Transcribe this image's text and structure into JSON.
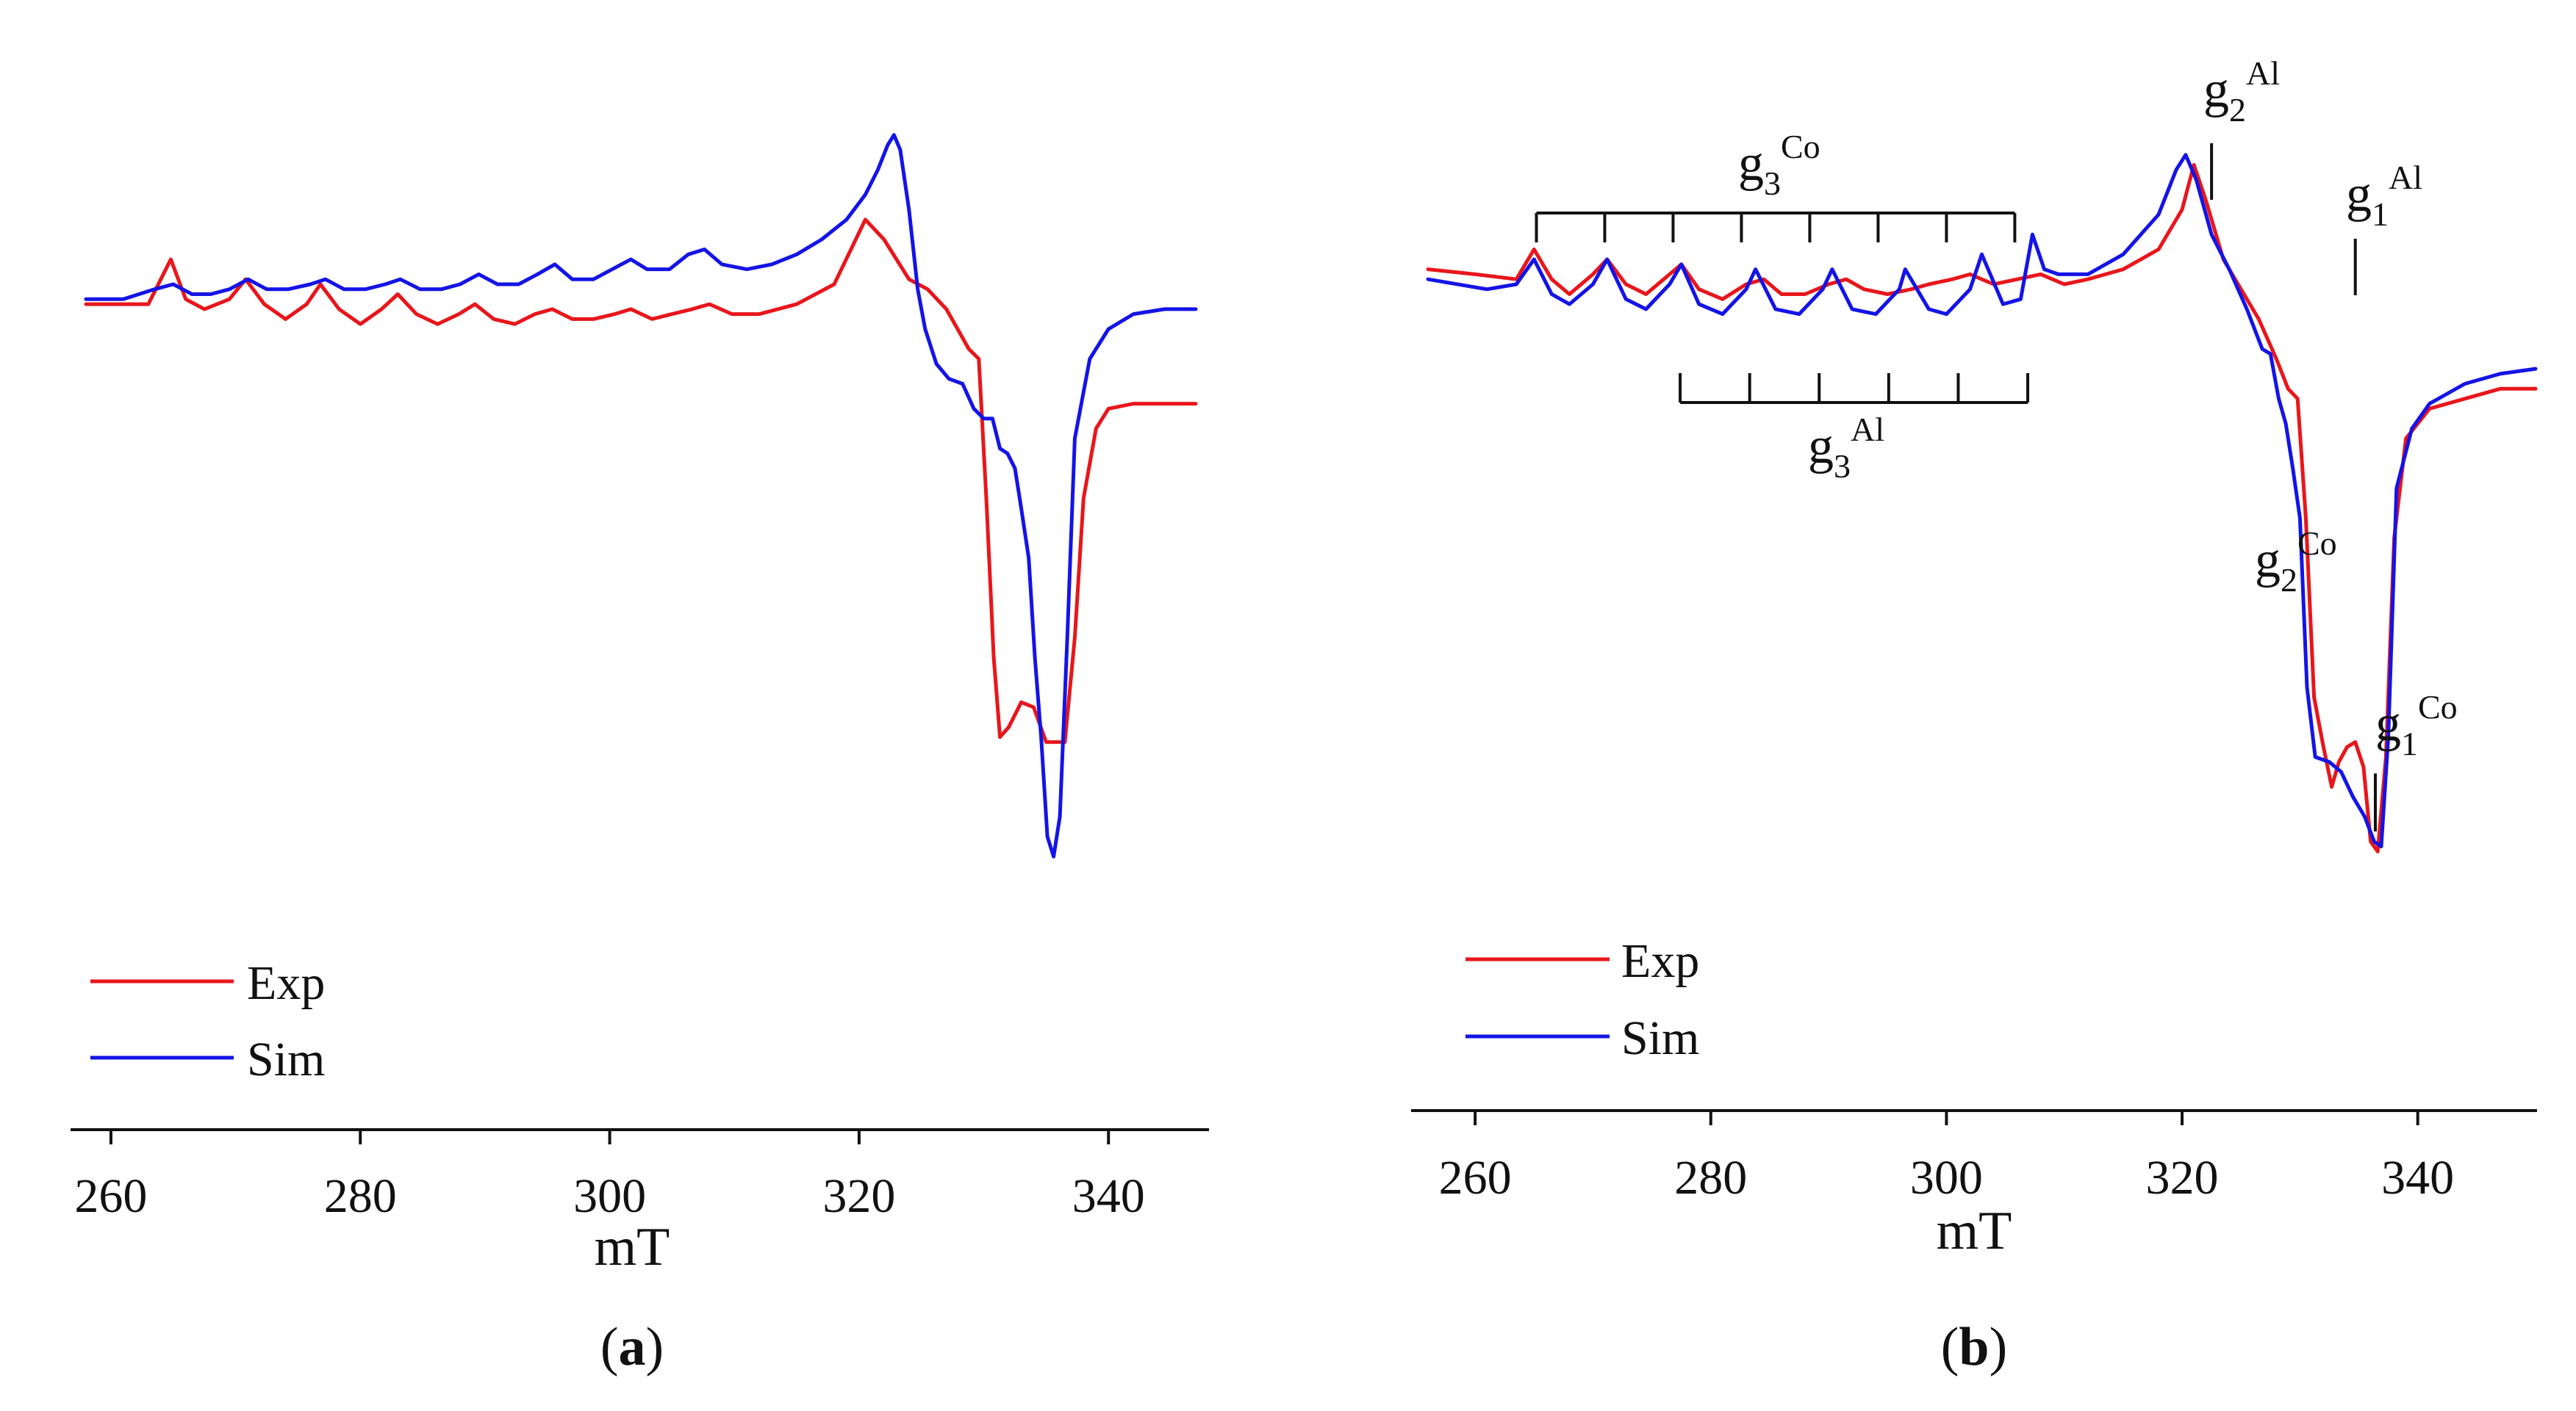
{
  "chart_data": [
    {
      "panel": "a",
      "panel_label": "a",
      "type": "line",
      "title": "",
      "xlabel": "mT",
      "ylabel": "",
      "xlim": [
        258,
        347
      ],
      "x_ticks": [
        260,
        280,
        300,
        320,
        340
      ],
      "x_tick_labels": [
        "260",
        "280",
        "300",
        "320",
        "340"
      ],
      "grid": false,
      "legend": "bottom-left",
      "y_units": "arbitrary intensity (0 = bottom of plot, 100 = top of plot)",
      "series": [
        {
          "name": "Exp",
          "color": "#e8161b",
          "points": [
            [
              258,
              73.5
            ],
            [
              263,
              73.5
            ],
            [
              264.8,
              78
            ],
            [
              266,
              74
            ],
            [
              267.5,
              73
            ],
            [
              269.5,
              74
            ],
            [
              270.8,
              76
            ],
            [
              272.3,
              73.5
            ],
            [
              274,
              72
            ],
            [
              275.7,
              73.5
            ],
            [
              276.8,
              75.5
            ],
            [
              278.3,
              73
            ],
            [
              280,
              71.5
            ],
            [
              281.7,
              73
            ],
            [
              283,
              74.5
            ],
            [
              284.5,
              72.5
            ],
            [
              286.2,
              71.5
            ],
            [
              287.9,
              72.5
            ],
            [
              289.2,
              73.5
            ],
            [
              290.7,
              72
            ],
            [
              292.4,
              71.5
            ],
            [
              294,
              72.5
            ],
            [
              295.4,
              73
            ],
            [
              297,
              72
            ],
            [
              298.7,
              72
            ],
            [
              300.4,
              72.5
            ],
            [
              301.7,
              73
            ],
            [
              303.4,
              72
            ],
            [
              305,
              72.5
            ],
            [
              306.6,
              73
            ],
            [
              308,
              73.5
            ],
            [
              309.8,
              72.5
            ],
            [
              312,
              72.5
            ],
            [
              315,
              73.5
            ],
            [
              318,
              75.5
            ],
            [
              320.5,
              82
            ],
            [
              322,
              80
            ],
            [
              324,
              76
            ],
            [
              325.5,
              75
            ],
            [
              327,
              73
            ],
            [
              328.8,
              69
            ],
            [
              329.6,
              68
            ],
            [
              330.2,
              54
            ],
            [
              330.8,
              38
            ],
            [
              331.3,
              30
            ],
            [
              332,
              31
            ],
            [
              333,
              33.5
            ],
            [
              334,
              33
            ],
            [
              335,
              29.5
            ],
            [
              336.5,
              29.5
            ],
            [
              337.3,
              40
            ],
            [
              338,
              54
            ],
            [
              339,
              61
            ],
            [
              340,
              63
            ],
            [
              342,
              63.5
            ],
            [
              344.5,
              63.5
            ],
            [
              347,
              63.5
            ]
          ]
        },
        {
          "name": "Sim",
          "color": "#1414e6",
          "points": [
            [
              258,
              74
            ],
            [
              261,
              74
            ],
            [
              263.5,
              75
            ],
            [
              265,
              75.5
            ],
            [
              266.5,
              74.5
            ],
            [
              268,
              74.5
            ],
            [
              269.5,
              75
            ],
            [
              271,
              76
            ],
            [
              272.5,
              75
            ],
            [
              274.2,
              75
            ],
            [
              276,
              75.5
            ],
            [
              277.2,
              76
            ],
            [
              278.7,
              75
            ],
            [
              280.4,
              75
            ],
            [
              282,
              75.5
            ],
            [
              283.2,
              76
            ],
            [
              284.8,
              75
            ],
            [
              286.5,
              75
            ],
            [
              288,
              75.5
            ],
            [
              289.5,
              76.5
            ],
            [
              291,
              75.5
            ],
            [
              292.7,
              75.5
            ],
            [
              294.2,
              76.5
            ],
            [
              295.6,
              77.5
            ],
            [
              297,
              76
            ],
            [
              298.7,
              76
            ],
            [
              300.2,
              77
            ],
            [
              301.7,
              78
            ],
            [
              303,
              77
            ],
            [
              304.8,
              77
            ],
            [
              306.3,
              78.5
            ],
            [
              307.6,
              79
            ],
            [
              309,
              77.5
            ],
            [
              311,
              77
            ],
            [
              313,
              77.5
            ],
            [
              315,
              78.5
            ],
            [
              317,
              80
            ],
            [
              319,
              82
            ],
            [
              320.5,
              84.5
            ],
            [
              321.5,
              87
            ],
            [
              322.3,
              89.5
            ],
            [
              322.8,
              90.5
            ],
            [
              323.3,
              89
            ],
            [
              324,
              83
            ],
            [
              324.7,
              75
            ],
            [
              325.3,
              71
            ],
            [
              326.2,
              67.5
            ],
            [
              327.2,
              66
            ],
            [
              328.3,
              65.5
            ],
            [
              329.2,
              63
            ],
            [
              330,
              62
            ],
            [
              330.7,
              62
            ],
            [
              331.3,
              59
            ],
            [
              331.9,
              58.5
            ],
            [
              332.5,
              57
            ],
            [
              333,
              53
            ],
            [
              333.6,
              48
            ],
            [
              334.1,
              38
            ],
            [
              334.6,
              30
            ],
            [
              335.1,
              20
            ],
            [
              335.6,
              18
            ],
            [
              336.1,
              22
            ],
            [
              336.7,
              40
            ],
            [
              337.3,
              60
            ],
            [
              338.5,
              68
            ],
            [
              340,
              71
            ],
            [
              342,
              72.5
            ],
            [
              344.5,
              73
            ],
            [
              347,
              73
            ]
          ]
        }
      ]
    },
    {
      "panel": "b",
      "panel_label": "b",
      "type": "line",
      "title": "",
      "xlabel": "mT",
      "ylabel": "",
      "xlim": [
        256,
        350
      ],
      "x_ticks": [
        260,
        280,
        300,
        320,
        340
      ],
      "x_tick_labels": [
        "260",
        "280",
        "300",
        "320",
        "340"
      ],
      "grid": false,
      "legend": "bottom-left",
      "y_units": "arbitrary intensity (0 = bottom of plot, 100 = top of plot)",
      "series": [
        {
          "name": "Exp",
          "color": "#e8161b",
          "points": [
            [
              256,
              77
            ],
            [
              260,
              76.5
            ],
            [
              263.5,
              76
            ],
            [
              265,
              79
            ],
            [
              266.5,
              76
            ],
            [
              268,
              74.5
            ],
            [
              270,
              76.5
            ],
            [
              271.2,
              78
            ],
            [
              272.8,
              75.5
            ],
            [
              274.5,
              74.5
            ],
            [
              276.5,
              76.5
            ],
            [
              277.5,
              77.5
            ],
            [
              279,
              75
            ],
            [
              281,
              74
            ],
            [
              283,
              75.5
            ],
            [
              284.5,
              76
            ],
            [
              286,
              74.5
            ],
            [
              288,
              74.5
            ],
            [
              290,
              75.5
            ],
            [
              291.5,
              76
            ],
            [
              293,
              75
            ],
            [
              295,
              74.5
            ],
            [
              297,
              75
            ],
            [
              298.5,
              75.5
            ],
            [
              300.5,
              76
            ],
            [
              302,
              76.5
            ],
            [
              304,
              75.5
            ],
            [
              306,
              76
            ],
            [
              308,
              76.5
            ],
            [
              310,
              75.5
            ],
            [
              312,
              76
            ],
            [
              315,
              77
            ],
            [
              318,
              79
            ],
            [
              320,
              83
            ],
            [
              321,
              87.5
            ],
            [
              322,
              84
            ],
            [
              323.5,
              78
            ],
            [
              325,
              75
            ],
            [
              326.5,
              72
            ],
            [
              328,
              68
            ],
            [
              329,
              65
            ],
            [
              329.8,
              64
            ],
            [
              330.5,
              52
            ],
            [
              331.2,
              34
            ],
            [
              332,
              29
            ],
            [
              332.7,
              25
            ],
            [
              333.3,
              27.5
            ],
            [
              334,
              29
            ],
            [
              334.7,
              29.5
            ],
            [
              335.4,
              27
            ],
            [
              336,
              19.5
            ],
            [
              336.6,
              18.5
            ],
            [
              337.3,
              28
            ],
            [
              338,
              50
            ],
            [
              339,
              60
            ],
            [
              341,
              63
            ],
            [
              344,
              64
            ],
            [
              347,
              65
            ],
            [
              350,
              65
            ]
          ]
        },
        {
          "name": "Sim",
          "color": "#1414e6",
          "points": [
            [
              256,
              76
            ],
            [
              261,
              75
            ],
            [
              263.5,
              75.5
            ],
            [
              265,
              78
            ],
            [
              266.5,
              74.5
            ],
            [
              268,
              73.5
            ],
            [
              270,
              75.5
            ],
            [
              271.2,
              78
            ],
            [
              272.8,
              74
            ],
            [
              274.5,
              73
            ],
            [
              276.5,
              75.5
            ],
            [
              277.5,
              77.5
            ],
            [
              279,
              73.5
            ],
            [
              281,
              72.5
            ],
            [
              283,
              75
            ],
            [
              283.8,
              77
            ],
            [
              285.5,
              73
            ],
            [
              287.5,
              72.5
            ],
            [
              289.5,
              75
            ],
            [
              290.3,
              77
            ],
            [
              292,
              73
            ],
            [
              294,
              72.5
            ],
            [
              296,
              75
            ],
            [
              296.5,
              77
            ],
            [
              298.5,
              73
            ],
            [
              300,
              72.5
            ],
            [
              302,
              75
            ],
            [
              303,
              78.5
            ],
            [
              304.8,
              73.5
            ],
            [
              306.3,
              74
            ],
            [
              307.3,
              80.5
            ],
            [
              308.3,
              77
            ],
            [
              309.5,
              76.5
            ],
            [
              312,
              76.5
            ],
            [
              315,
              78.5
            ],
            [
              318,
              82.5
            ],
            [
              319.5,
              87
            ],
            [
              320.3,
              88.5
            ],
            [
              321.2,
              86
            ],
            [
              322.5,
              80.5
            ],
            [
              324,
              77
            ],
            [
              325.5,
              73
            ],
            [
              326.8,
              69
            ],
            [
              327.5,
              68.5
            ],
            [
              328.2,
              64
            ],
            [
              328.8,
              61.5
            ],
            [
              329.4,
              57
            ],
            [
              330,
              52
            ],
            [
              330.6,
              35
            ],
            [
              331.3,
              28
            ],
            [
              332.5,
              27.5
            ],
            [
              333.5,
              26.5
            ],
            [
              334.5,
              24
            ],
            [
              335.5,
              22
            ],
            [
              336.3,
              19.5
            ],
            [
              336.9,
              19
            ],
            [
              337.5,
              30
            ],
            [
              338.2,
              55
            ],
            [
              339.5,
              61
            ],
            [
              341,
              63.5
            ],
            [
              344,
              65.5
            ],
            [
              347,
              66.5
            ],
            [
              350,
              67
            ]
          ]
        }
      ],
      "annotations": [
        {
          "id": "g3-co",
          "main": "g",
          "sub": "3",
          "sup": "Co"
        },
        {
          "id": "g3-al",
          "main": "g",
          "sub": "3",
          "sup": "Al"
        },
        {
          "id": "g2-al",
          "main": "g",
          "sub": "2",
          "sup": "Al"
        },
        {
          "id": "g1-al",
          "main": "g",
          "sub": "1",
          "sup": "Al"
        },
        {
          "id": "g2-co",
          "main": "g",
          "sub": "2",
          "sup": "Co"
        },
        {
          "id": "g1-co",
          "main": "g",
          "sub": "1",
          "sup": "Co"
        }
      ],
      "markers": {
        "g3_co_positions": [
          265.2,
          271,
          276.8,
          282.6,
          288.4,
          294.2,
          300,
          305.8
        ],
        "g3_al_positions": [
          277.4,
          283.3,
          289.2,
          295.1,
          301,
          306.9
        ],
        "g2_al_position": 322.5,
        "g1_al_position": 334.7,
        "g1_co_position": 336.4
      }
    }
  ]
}
